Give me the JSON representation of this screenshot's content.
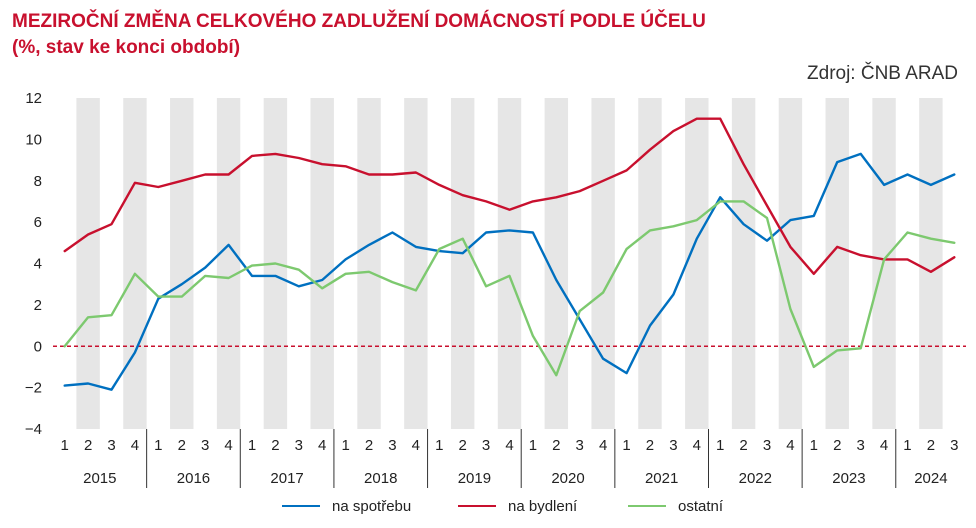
{
  "title": "MEZIROČNÍ ZMĚNA CELKOVÉHO ZADLUŽENÍ DOMÁCNOSTÍ PODLE ÚČELU",
  "subtitle": "(%, stav ke konci období)",
  "source": "Zdroj: ČNB ARAD",
  "colors": {
    "spotreba": "#0070c0",
    "bydleni": "#c8102e",
    "ostatni": "#7dc96f",
    "band": "#e6e6e6",
    "zero_line": "#c8102e"
  },
  "chart_data": {
    "type": "line",
    "title": "MEZIROČNÍ ZMĚNA CELKOVÉHO ZADLUŽENÍ DOMÁCNOSTÍ PODLE ÚČELU",
    "subtitle": "(%, stav ke konci období)",
    "xlabel": "",
    "ylabel": "",
    "ylim": [
      -4,
      12
    ],
    "yticks": [
      -4,
      -2,
      0,
      2,
      4,
      6,
      8,
      10,
      12
    ],
    "ytick_labels": [
      "−4",
      "−2",
      "0",
      "2",
      "4",
      "6",
      "8",
      "10",
      "12"
    ],
    "grid": false,
    "alternating_quarter_bands": true,
    "legend_position": "bottom",
    "years": [
      "2015",
      "2016",
      "2017",
      "2018",
      "2019",
      "2020",
      "2021",
      "2022",
      "2023",
      "2024"
    ],
    "quarters": [
      "1",
      "2",
      "3",
      "4",
      "1",
      "2",
      "3",
      "4",
      "1",
      "2",
      "3",
      "4",
      "1",
      "2",
      "3",
      "4",
      "1",
      "2",
      "3",
      "4",
      "1",
      "2",
      "3",
      "4",
      "1",
      "2",
      "3",
      "4",
      "1",
      "2",
      "3",
      "4",
      "1",
      "2",
      "3",
      "4",
      "1",
      "2",
      "3"
    ],
    "series": [
      {
        "name": "na spotřebu",
        "color": "#0070c0",
        "values": [
          -1.9,
          -1.8,
          -2.1,
          -0.3,
          2.3,
          3.0,
          3.8,
          4.9,
          3.4,
          3.4,
          2.9,
          3.2,
          4.2,
          4.9,
          5.5,
          4.8,
          4.6,
          4.5,
          5.5,
          5.6,
          5.5,
          3.2,
          1.3,
          -0.6,
          -1.3,
          1.0,
          2.5,
          5.2,
          7.2,
          5.9,
          5.1,
          6.1,
          6.3,
          8.9,
          9.3,
          7.8,
          8.3,
          7.8,
          8.3
        ]
      },
      {
        "name": "na bydlení",
        "color": "#c8102e",
        "values": [
          4.6,
          5.4,
          5.9,
          7.9,
          7.7,
          8.0,
          8.3,
          8.3,
          9.2,
          9.3,
          9.1,
          8.8,
          8.7,
          8.3,
          8.3,
          8.4,
          7.8,
          7.3,
          7.0,
          6.6,
          7.0,
          7.2,
          7.5,
          8.0,
          8.5,
          9.5,
          10.4,
          11.0,
          11.0,
          8.8,
          6.8,
          4.8,
          3.5,
          4.8,
          4.4,
          4.2,
          4.2,
          3.6,
          4.3
        ]
      },
      {
        "name": "ostatní",
        "color": "#7dc96f",
        "values": [
          0.0,
          1.4,
          1.5,
          3.5,
          2.4,
          2.4,
          3.4,
          3.3,
          3.9,
          4.0,
          3.7,
          2.8,
          3.5,
          3.6,
          3.1,
          2.7,
          4.7,
          5.2,
          2.9,
          3.4,
          0.5,
          -1.4,
          1.7,
          2.6,
          4.7,
          5.6,
          5.8,
          6.1,
          7.0,
          7.0,
          6.2,
          1.8,
          -1.0,
          -0.2,
          -0.1,
          4.2,
          5.5,
          5.2,
          5.0
        ]
      }
    ]
  }
}
